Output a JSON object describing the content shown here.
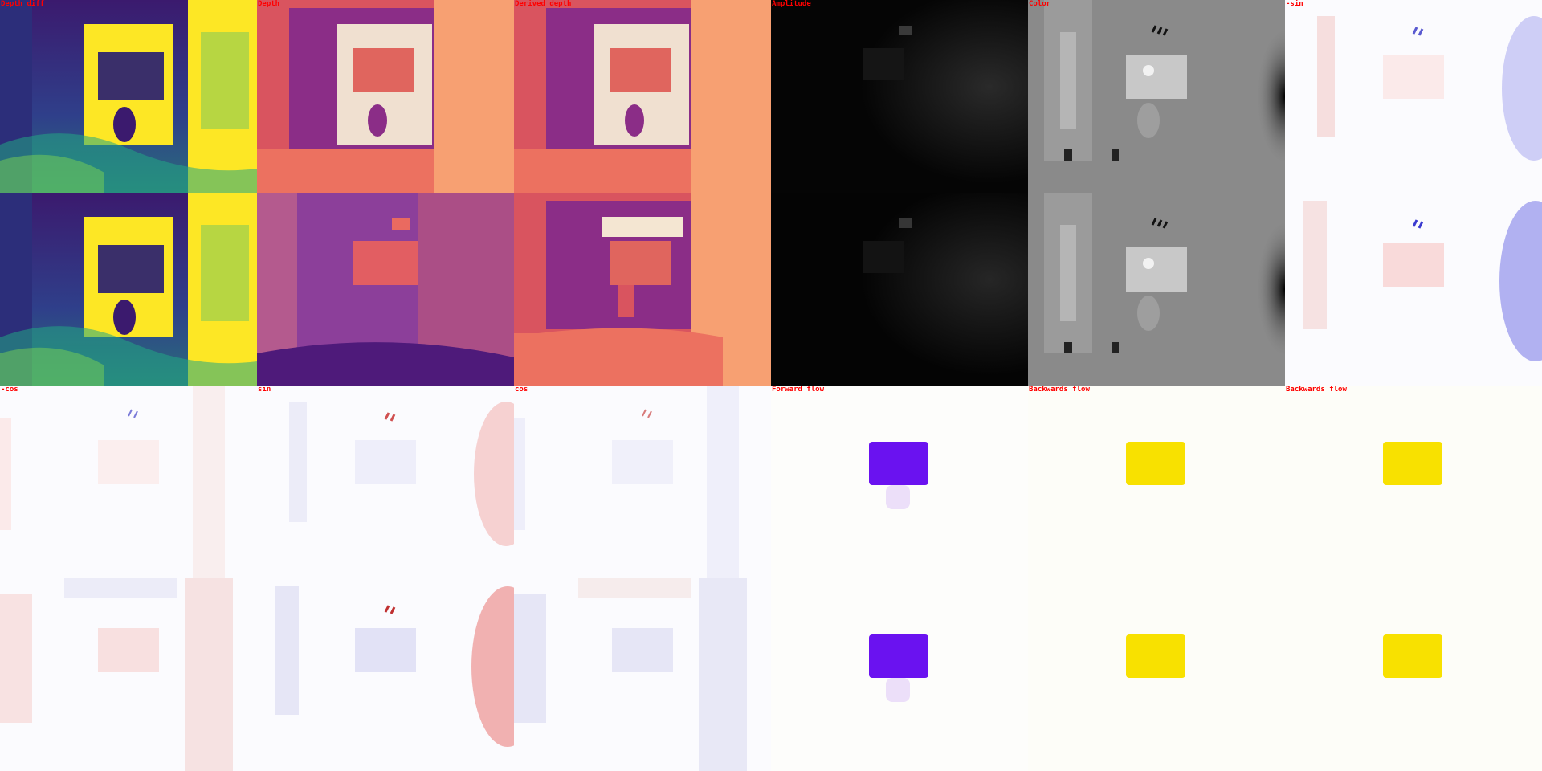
{
  "panels": [
    {
      "label": "Depth diff",
      "kind": "viridis-diff"
    },
    {
      "label": "Depth",
      "kind": "magma-depth"
    },
    {
      "label": "Derived depth",
      "kind": "magma-derived"
    },
    {
      "label": "Amplitude",
      "kind": "amplitude"
    },
    {
      "label": "Color",
      "kind": "gray-color"
    },
    {
      "label": "-sin",
      "kind": "bwr-neg-sin"
    },
    {
      "label": "-cos",
      "kind": "bwr-neg-cos"
    },
    {
      "label": "sin",
      "kind": "bwr-sin"
    },
    {
      "label": "cos",
      "kind": "bwr-cos"
    },
    {
      "label": "Forward flow",
      "kind": "flow-forward"
    },
    {
      "label": "Backwards flow",
      "kind": "flow-backward"
    },
    {
      "label": "Backwards flow",
      "kind": "flow-backward"
    }
  ],
  "colors": {
    "label": "#ff0000",
    "viridis_dark": "#3b1a6e",
    "viridis_yellow": "#fde725",
    "magma_purple": "#7a2e8a",
    "magma_orange": "#f7986b",
    "magma_salmon": "#e8635e",
    "flow_purple": "#6a12f0",
    "flow_yellow": "#f8e100"
  }
}
